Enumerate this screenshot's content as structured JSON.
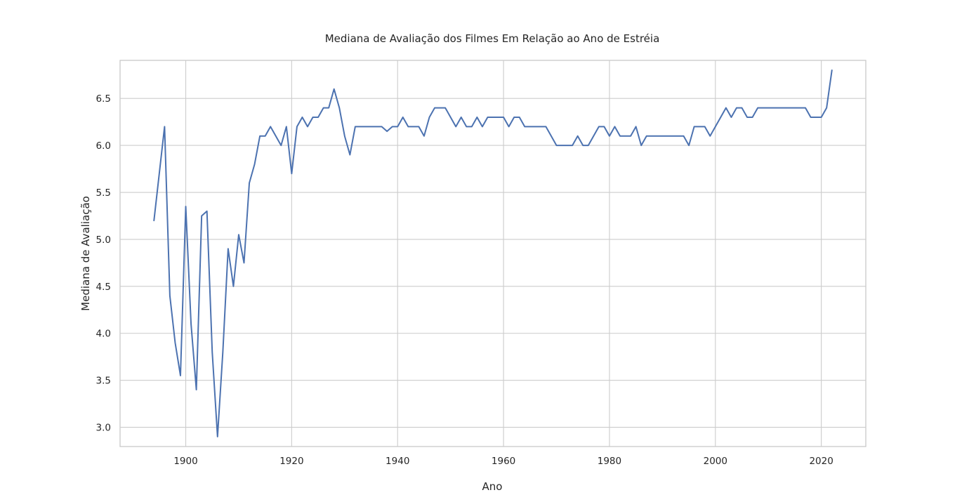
{
  "chart_data": {
    "type": "line",
    "title": "Mediana de Avaliação dos Filmes Em Relação ao Ano de Estréia",
    "xlabel": "Ano",
    "ylabel": "Mediana de Avaliação",
    "xlim": [
      1887.6,
      2028.4
    ],
    "ylim": [
      2.795,
      6.905
    ],
    "xticks": [
      1900,
      1920,
      1940,
      1960,
      1980,
      2000,
      2020
    ],
    "xtick_labels": [
      "1900",
      "1920",
      "1940",
      "1960",
      "1980",
      "2000",
      "2020"
    ],
    "yticks": [
      3.0,
      3.5,
      4.0,
      4.5,
      5.0,
      5.5,
      6.0,
      6.5
    ],
    "ytick_labels": [
      "3.0",
      "3.5",
      "4.0",
      "4.5",
      "5.0",
      "5.5",
      "6.0",
      "6.5"
    ],
    "grid": true,
    "line_color": "#4c72b0",
    "series": [
      {
        "x": [
          1894,
          1895,
          1896,
          1897,
          1898,
          1899,
          1900,
          1901,
          1902,
          1903,
          1904,
          1905,
          1906,
          1907,
          1908,
          1909,
          1910,
          1911,
          1912,
          1913,
          1914,
          1915,
          1916,
          1917,
          1918,
          1919,
          1920,
          1921,
          1922,
          1923,
          1924,
          1925,
          1926,
          1927,
          1928,
          1929,
          1930,
          1931,
          1932,
          1933,
          1934,
          1935,
          1936,
          1937,
          1938,
          1939,
          1940,
          1941,
          1942,
          1943,
          1944,
          1945,
          1946,
          1947,
          1948,
          1949,
          1950,
          1951,
          1952,
          1953,
          1954,
          1955,
          1956,
          1957,
          1958,
          1959,
          1960,
          1961,
          1962,
          1963,
          1964,
          1965,
          1966,
          1967,
          1968,
          1969,
          1970,
          1971,
          1972,
          1973,
          1974,
          1975,
          1976,
          1977,
          1978,
          1979,
          1980,
          1981,
          1982,
          1983,
          1984,
          1985,
          1986,
          1987,
          1988,
          1989,
          1990,
          1991,
          1992,
          1993,
          1994,
          1995,
          1996,
          1997,
          1998,
          1999,
          2000,
          2001,
          2002,
          2003,
          2004,
          2005,
          2006,
          2007,
          2008,
          2009,
          2010,
          2011,
          2012,
          2013,
          2014,
          2015,
          2016,
          2017,
          2018,
          2019,
          2020,
          2021,
          2022
        ],
        "y": [
          5.2,
          5.7,
          6.2,
          4.4,
          3.9,
          3.55,
          5.35,
          4.1,
          3.4,
          5.25,
          5.3,
          3.8,
          2.9,
          3.8,
          4.9,
          4.5,
          5.05,
          4.75,
          5.6,
          5.8,
          6.1,
          6.1,
          6.2,
          6.1,
          6.0,
          6.2,
          5.7,
          6.2,
          6.3,
          6.2,
          6.3,
          6.3,
          6.4,
          6.4,
          6.6,
          6.4,
          6.1,
          5.9,
          6.2,
          6.2,
          6.2,
          6.2,
          6.2,
          6.2,
          6.15,
          6.2,
          6.2,
          6.3,
          6.2,
          6.2,
          6.2,
          6.1,
          6.3,
          6.4,
          6.4,
          6.4,
          6.3,
          6.2,
          6.3,
          6.2,
          6.2,
          6.3,
          6.2,
          6.3,
          6.3,
          6.3,
          6.3,
          6.2,
          6.3,
          6.3,
          6.2,
          6.2,
          6.2,
          6.2,
          6.2,
          6.1,
          6.0,
          6.0,
          6.0,
          6.0,
          6.1,
          6.0,
          6.0,
          6.1,
          6.2,
          6.2,
          6.1,
          6.2,
          6.1,
          6.1,
          6.1,
          6.2,
          6.0,
          6.1,
          6.1,
          6.1,
          6.1,
          6.1,
          6.1,
          6.1,
          6.1,
          6.0,
          6.2,
          6.2,
          6.2,
          6.1,
          6.2,
          6.3,
          6.4,
          6.3,
          6.4,
          6.4,
          6.3,
          6.3,
          6.4,
          6.4,
          6.4,
          6.4,
          6.4,
          6.4,
          6.4,
          6.4,
          6.4,
          6.4,
          6.3,
          6.3,
          6.3,
          6.4,
          6.8
        ]
      }
    ]
  }
}
